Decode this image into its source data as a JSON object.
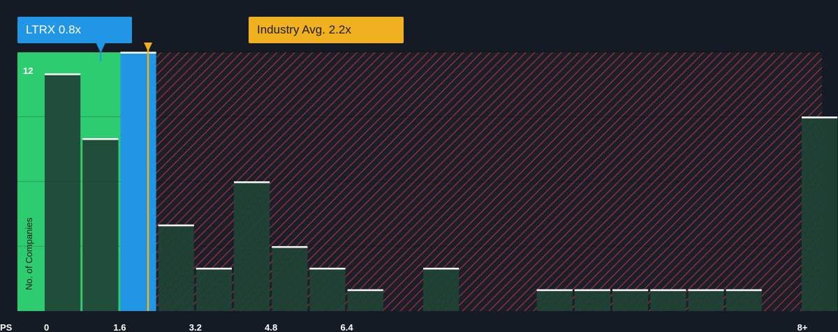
{
  "chart_data": {
    "type": "bar",
    "axis_prefix": "PS",
    "ylabel": "No. of Companies",
    "ytick_label": "12",
    "x_tick_labels": [
      "0",
      "1.6",
      "3.2",
      "4.8",
      "6.4",
      "8+"
    ],
    "x_tick_values": [
      0,
      1.6,
      3.2,
      4.8,
      6.4,
      8
    ],
    "bins": [
      {
        "start": 0.0,
        "end": 0.8,
        "value": 11
      },
      {
        "start": 0.8,
        "end": 1.6,
        "value": 8
      },
      {
        "start": 1.6,
        "end": 2.4,
        "value": 12
      },
      {
        "start": 2.4,
        "end": 3.2,
        "value": 4
      },
      {
        "start": 3.2,
        "end": 4.0,
        "value": 2
      },
      {
        "start": 4.0,
        "end": 4.8,
        "value": 6
      },
      {
        "start": 4.8,
        "end": 5.6,
        "value": 3
      },
      {
        "start": 5.6,
        "end": 6.4,
        "value": 2
      },
      {
        "start": 6.4,
        "end": 7.2,
        "value": 1
      },
      {
        "start": 8.0,
        "end": 8.8,
        "value": 2
      },
      {
        "start": 10.4,
        "end": 11.2,
        "value": 1
      },
      {
        "start": 11.2,
        "end": 12.0,
        "value": 1
      },
      {
        "start": 12.0,
        "end": 12.8,
        "value": 1
      },
      {
        "start": 12.8,
        "end": 13.6,
        "value": 1
      },
      {
        "start": 13.6,
        "end": 14.4,
        "value": 1
      },
      {
        "start": 14.4,
        "end": 15.2,
        "value": 1
      },
      {
        "start": 16.0,
        "end": 16.8,
        "value": 9
      }
    ],
    "highlight_bin_index": 2,
    "ylim": [
      0,
      12.5
    ],
    "company": {
      "label": "LTRX 0.8x",
      "value": 0.8
    },
    "industry": {
      "label": "Industry Avg. 2.2x",
      "value": 2.2
    },
    "colors": {
      "background": "#151b24",
      "undervalued_zone": "#2ecc71",
      "overvalued_zone": "#c0343c",
      "bar": "#1f4335",
      "highlight_bar": "#2196e4",
      "industry": "#f0b020",
      "company": "#2196e4"
    }
  }
}
